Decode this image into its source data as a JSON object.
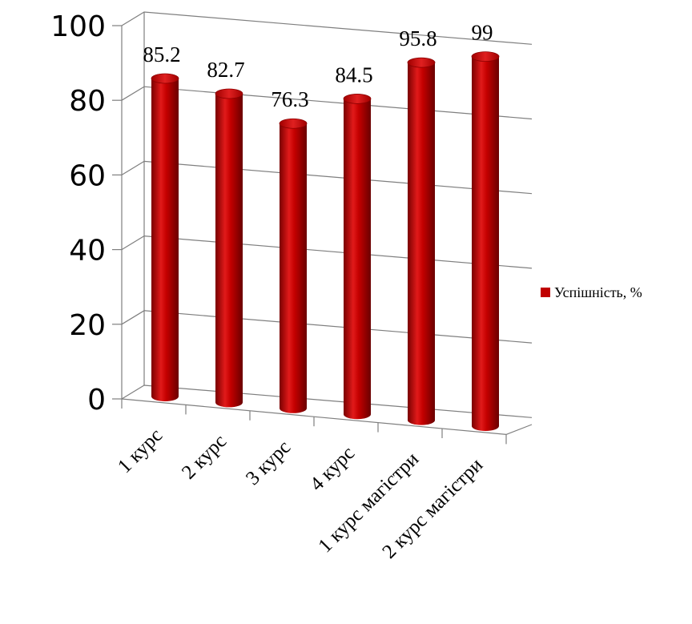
{
  "chart_data": {
    "type": "bar",
    "title": "",
    "xlabel": "",
    "ylabel": "",
    "categories": [
      "1 курс",
      "2 курс",
      "3 курс",
      "4 курс",
      "1 курс магістри",
      "2 курс магістри"
    ],
    "series": [
      {
        "name": "Успішність, %",
        "values": [
          85.2,
          82.7,
          76.3,
          84.5,
          95.8,
          99
        ],
        "labels": [
          "85.2",
          "82.7",
          "76.3",
          "84.5",
          "95.8",
          "99"
        ],
        "color": "#c00000"
      }
    ],
    "ylim": [
      0,
      100
    ],
    "yticks": [
      0,
      20,
      40,
      60,
      80,
      100
    ],
    "ytick_labels": [
      "0",
      "20",
      "40",
      "60",
      "80",
      "100"
    ],
    "grid": true,
    "legend_position": "right",
    "style": "3d-cylinder"
  }
}
